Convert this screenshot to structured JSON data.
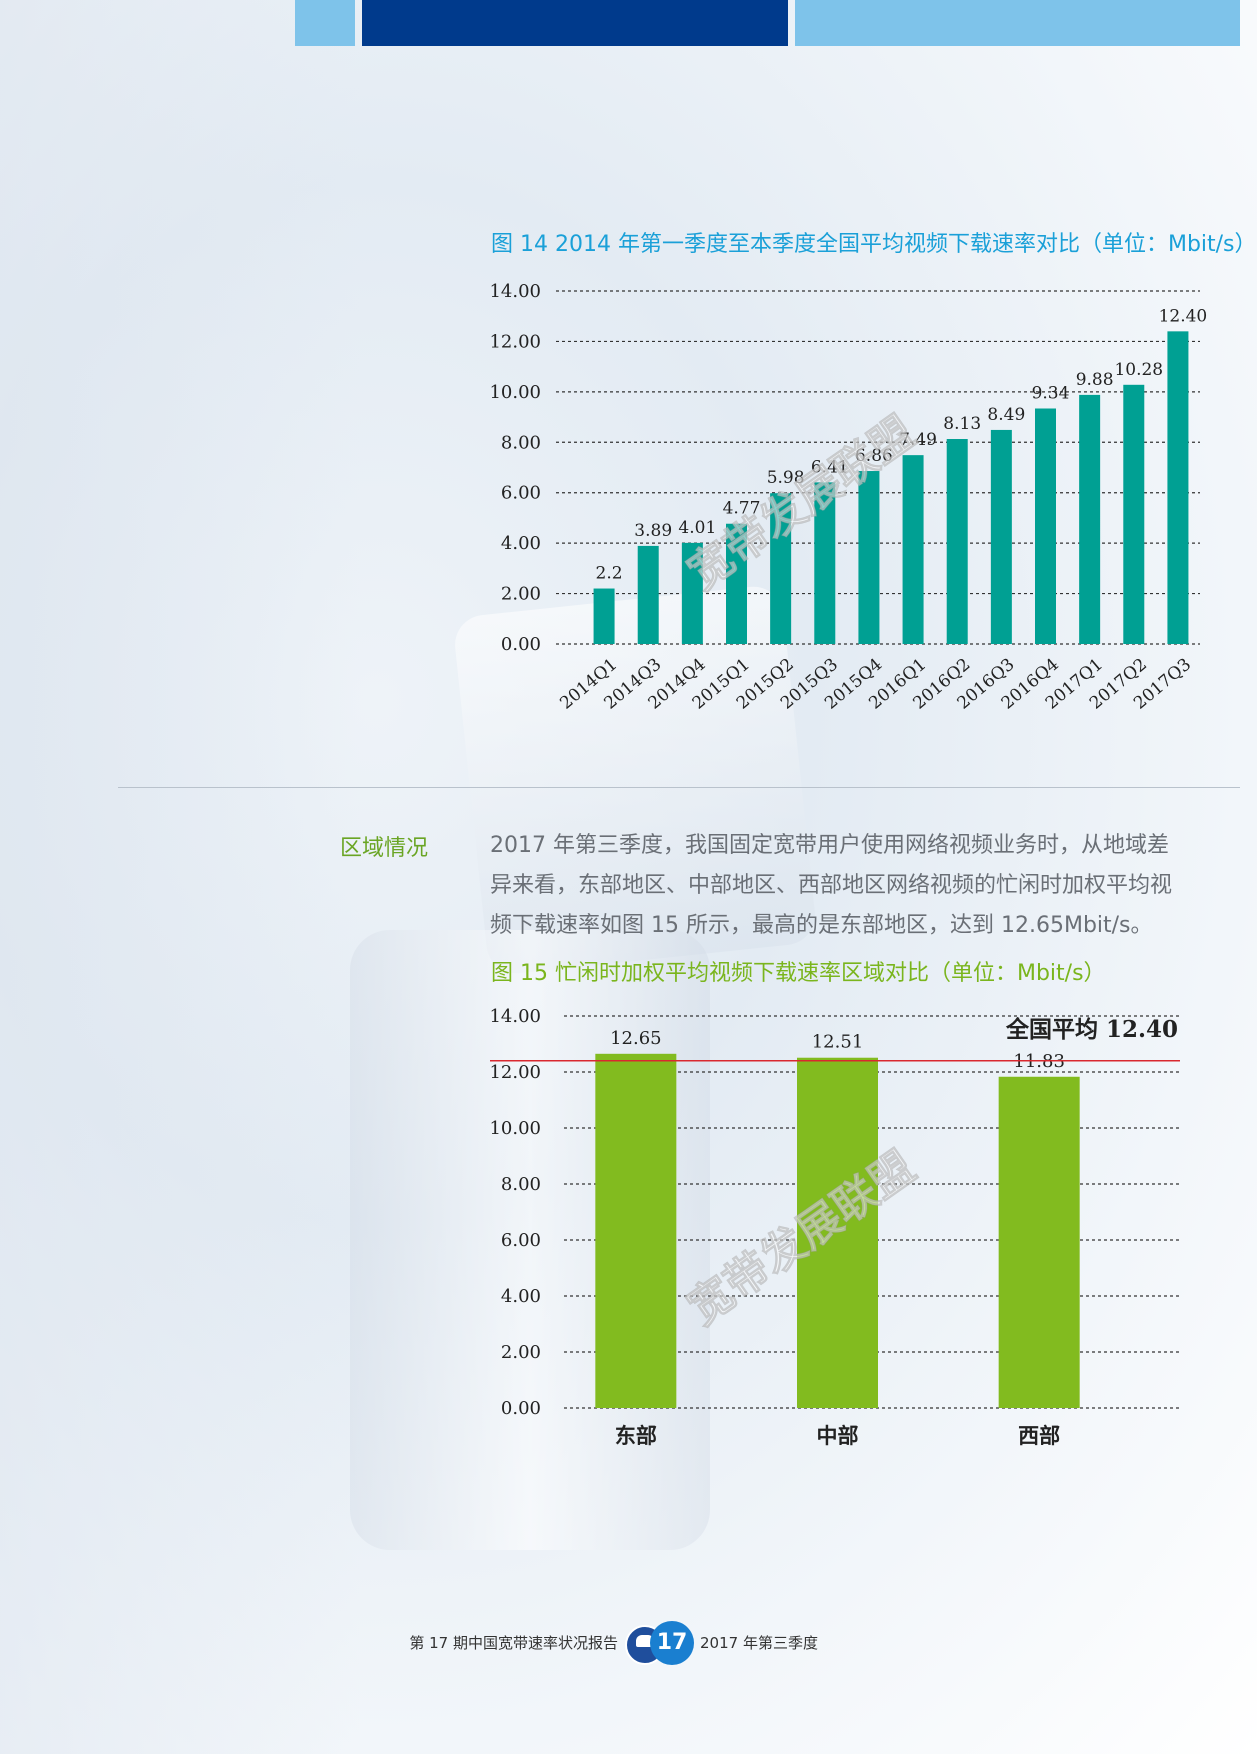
{
  "page": {
    "colors": {
      "teal": "#00a093",
      "green": "#82bb1f",
      "red_line": "#d9282f",
      "title_blue": "#1aa0d8",
      "title_green": "#7ab51d"
    }
  },
  "figure14": {
    "title": "图 14 2014 年第一季度至本季度全国平均视频下载速率对比（单位：Mbit/s）",
    "watermark": "宽带发展联盟"
  },
  "figure15": {
    "title": "图 15 忙闲时加权平均视频下载速率区域对比（单位：Mbit/s）",
    "watermark": "宽带发展联盟"
  },
  "section": {
    "label": "区域情况",
    "paragraph": "2017 年第三季度，我国固定宽带用户使用网络视频业务时，从地域差异来看，东部地区、中部地区、西部地区网络视频的忙闲时加权平均视频下载速率如图 15 所示，最高的是东部地区，达到 12.65Mbit/s。"
  },
  "footer": {
    "left": "第 17 期中国宽带速率状况报告",
    "page_number": "17",
    "right": "2017 年第三季度"
  },
  "chart_data": [
    {
      "type": "bar",
      "title": "图 14 2014 年第一季度至本季度全国平均视频下载速率对比（单位：Mbit/s）",
      "categories": [
        "2014Q1",
        "2014Q3",
        "2014Q4",
        "2015Q1",
        "2015Q2",
        "2015Q3",
        "2015Q4",
        "2016Q1",
        "2016Q2",
        "2016Q3",
        "2016Q4",
        "2017Q1",
        "2017Q2",
        "2017Q3"
      ],
      "values": [
        2.2,
        3.89,
        4.01,
        4.77,
        5.98,
        6.41,
        6.86,
        7.49,
        8.13,
        8.49,
        9.34,
        9.88,
        10.28,
        12.4
      ],
      "data_labels": [
        "2.2",
        "3.89",
        "4.01",
        "4.77",
        "5.98",
        "6.41",
        "6.86",
        "7.49",
        "8.13",
        "8.49",
        "9.34",
        "9.88",
        "10.28",
        "12.40"
      ],
      "yticks": [
        "0.00",
        "2.00",
        "4.00",
        "6.00",
        "8.00",
        "10.00",
        "12.00",
        "14.00"
      ],
      "ylim": [
        0,
        14
      ],
      "color": "#00a093",
      "grid": true
    },
    {
      "type": "bar",
      "title": "图 15 忙闲时加权平均视频下载速率区域对比（单位：Mbit/s）",
      "categories": [
        "东部",
        "中部",
        "西部"
      ],
      "values": [
        12.65,
        12.51,
        11.83
      ],
      "data_labels": [
        "12.65",
        "12.51",
        "11.83"
      ],
      "yticks": [
        "0.00",
        "2.00",
        "4.00",
        "6.00",
        "8.00",
        "10.00",
        "12.00",
        "14.00"
      ],
      "ylim": [
        0,
        14
      ],
      "color": "#82bb1f",
      "grid": true,
      "reference_line": {
        "label": "全国平均 12.40",
        "value": 12.4,
        "color": "#d9282f"
      }
    }
  ]
}
